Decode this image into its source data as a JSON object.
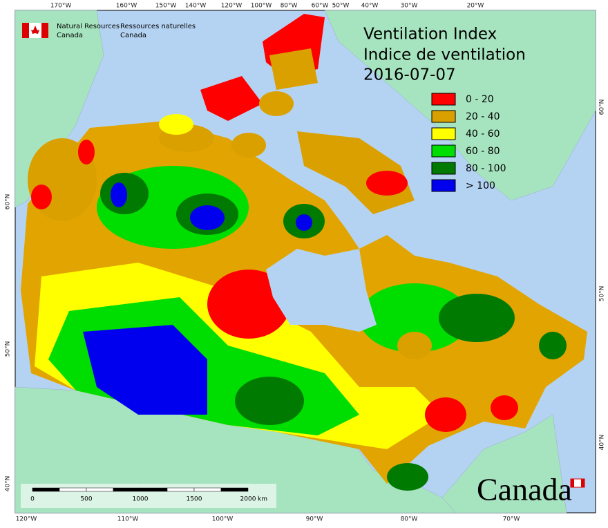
{
  "header": {
    "agency_en": [
      "Natural Resources",
      "Canada"
    ],
    "agency_fr": [
      "Ressources naturelles",
      "Canada"
    ]
  },
  "title": [
    "Ventilation Index",
    "Indice de ventilation",
    "2016-07-07"
  ],
  "legend": [
    {
      "label": "0 - 20",
      "color": "#ff0000"
    },
    {
      "label": "20 - 40",
      "color": "#daa000"
    },
    {
      "label": "40 - 60",
      "color": "#ffff00"
    },
    {
      "label": "60 - 80",
      "color": "#00dd00"
    },
    {
      "label": "80 - 100",
      "color": "#007a00"
    },
    {
      "label": "> 100",
      "color": "#0000ee"
    }
  ],
  "graticule": {
    "top": [
      "170°W",
      "160°W",
      "150°W",
      "140°W",
      "120°W",
      "100°W",
      "80°W",
      "60°W",
      "50°W",
      "40°W",
      "30°W",
      "20°W"
    ],
    "bottom": [
      "120°W",
      "110°W",
      "100°W",
      "90°W",
      "80°W",
      "70°W"
    ],
    "left": [
      "60°N",
      "50°N",
      "40°N"
    ],
    "right": [
      "60°N",
      "50°N",
      "40°N"
    ]
  },
  "scale_bar": {
    "labels": [
      "0",
      "500",
      "1000",
      "1500",
      "2000"
    ],
    "unit": "km"
  },
  "wordmark": "Canada"
}
